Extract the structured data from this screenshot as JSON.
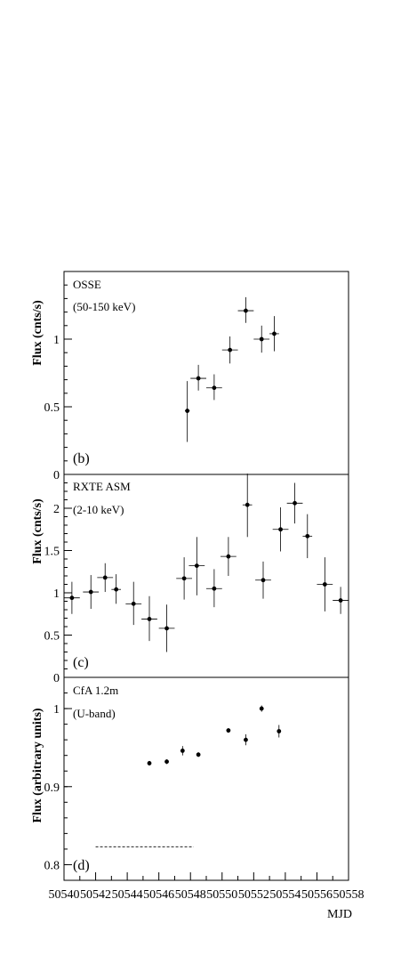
{
  "chart_data": [
    {
      "type": "scatter",
      "panel": "b",
      "instrument": "OSSE",
      "band": "(50-150 keV)",
      "ylabel": "Flux (cnts/s)",
      "ylim": [
        0,
        1.5
      ],
      "yticks": [
        0,
        0.5,
        1
      ],
      "ytick_labels": [
        "0",
        "0.5",
        "1"
      ],
      "points": [
        {
          "x": 50547.8,
          "y": 0.47,
          "xerr": 0.15,
          "yerr_lo": 0.23,
          "yerr_hi": 0.22
        },
        {
          "x": 50548.5,
          "y": 0.71,
          "xerr": 0.5,
          "yerr_lo": 0.09,
          "yerr_hi": 0.1
        },
        {
          "x": 50549.5,
          "y": 0.64,
          "xerr": 0.5,
          "yerr_lo": 0.09,
          "yerr_hi": 0.1
        },
        {
          "x": 50550.5,
          "y": 0.92,
          "xerr": 0.5,
          "yerr_lo": 0.1,
          "yerr_hi": 0.1
        },
        {
          "x": 50551.5,
          "y": 1.21,
          "xerr": 0.5,
          "yerr_lo": 0.09,
          "yerr_hi": 0.1
        },
        {
          "x": 50552.5,
          "y": 1.0,
          "xerr": 0.5,
          "yerr_lo": 0.1,
          "yerr_hi": 0.1
        },
        {
          "x": 50553.3,
          "y": 1.04,
          "xerr": 0.3,
          "yerr_lo": 0.13,
          "yerr_hi": 0.13
        }
      ]
    },
    {
      "type": "scatter",
      "panel": "c",
      "instrument": "RXTE ASM",
      "band": "(2-10 keV)",
      "ylabel": "Flux (cnts/s)",
      "ylim": [
        0,
        2.4
      ],
      "yticks": [
        0,
        0.5,
        1,
        1.5,
        2
      ],
      "ytick_labels": [
        "0",
        "0.5",
        "1",
        "1.5",
        "2"
      ],
      "points": [
        {
          "x": 50540.5,
          "y": 0.94,
          "xerr": 0.5,
          "yerr_lo": 0.19,
          "yerr_hi": 0.19
        },
        {
          "x": 50541.7,
          "y": 1.01,
          "xerr": 0.5,
          "yerr_lo": 0.2,
          "yerr_hi": 0.2
        },
        {
          "x": 50542.6,
          "y": 1.18,
          "xerr": 0.5,
          "yerr_lo": 0.17,
          "yerr_hi": 0.17
        },
        {
          "x": 50543.3,
          "y": 1.04,
          "xerr": 0.3,
          "yerr_lo": 0.17,
          "yerr_hi": 0.18
        },
        {
          "x": 50544.4,
          "y": 0.87,
          "xerr": 0.5,
          "yerr_lo": 0.25,
          "yerr_hi": 0.26
        },
        {
          "x": 50545.4,
          "y": 0.69,
          "xerr": 0.5,
          "yerr_lo": 0.26,
          "yerr_hi": 0.27
        },
        {
          "x": 50546.5,
          "y": 0.58,
          "xerr": 0.5,
          "yerr_lo": 0.28,
          "yerr_hi": 0.28
        },
        {
          "x": 50547.6,
          "y": 1.17,
          "xerr": 0.5,
          "yerr_lo": 0.25,
          "yerr_hi": 0.25
        },
        {
          "x": 50548.4,
          "y": 1.32,
          "xerr": 0.5,
          "yerr_lo": 0.35,
          "yerr_hi": 0.34
        },
        {
          "x": 50549.5,
          "y": 1.05,
          "xerr": 0.5,
          "yerr_lo": 0.22,
          "yerr_hi": 0.23
        },
        {
          "x": 50550.4,
          "y": 1.43,
          "xerr": 0.5,
          "yerr_lo": 0.23,
          "yerr_hi": 0.23
        },
        {
          "x": 50551.6,
          "y": 2.04,
          "xerr": 0.3,
          "yerr_lo": 0.38,
          "yerr_hi": 0.37
        },
        {
          "x": 50552.6,
          "y": 1.15,
          "xerr": 0.5,
          "yerr_lo": 0.22,
          "yerr_hi": 0.22
        },
        {
          "x": 50553.7,
          "y": 1.75,
          "xerr": 0.5,
          "yerr_lo": 0.26,
          "yerr_hi": 0.26
        },
        {
          "x": 50554.6,
          "y": 2.06,
          "xerr": 0.5,
          "yerr_lo": 0.24,
          "yerr_hi": 0.24
        },
        {
          "x": 50555.4,
          "y": 1.67,
          "xerr": 0.3,
          "yerr_lo": 0.26,
          "yerr_hi": 0.26
        },
        {
          "x": 50556.5,
          "y": 1.1,
          "xerr": 0.5,
          "yerr_lo": 0.32,
          "yerr_hi": 0.32
        },
        {
          "x": 50557.5,
          "y": 0.91,
          "xerr": 0.5,
          "yerr_lo": 0.16,
          "yerr_hi": 0.16
        }
      ]
    },
    {
      "type": "scatter",
      "panel": "d",
      "instrument": "CfA 1.2m",
      "band": "(U-band)",
      "ylabel": "Flux (arbitrary units)",
      "ylim": [
        0.78,
        1.04
      ],
      "yticks": [
        0.8,
        0.9,
        1
      ],
      "ytick_labels": [
        "0.8",
        "0.9",
        "1"
      ],
      "xlabel": "MJD",
      "xlim": [
        50540,
        50558
      ],
      "xticks": [
        50540,
        50542,
        50544,
        50546,
        50548,
        50550,
        50552,
        50554,
        50556,
        50558
      ],
      "reference_line": {
        "x0": 50542.0,
        "x1": 50548.2,
        "y": 0.823,
        "style": "dashed"
      },
      "points": [
        {
          "x": 50545.4,
          "y": 0.93,
          "yerr": 0.003
        },
        {
          "x": 50546.5,
          "y": 0.932,
          "yerr": 0.003
        },
        {
          "x": 50547.5,
          "y": 0.946,
          "yerr": 0.006
        },
        {
          "x": 50548.5,
          "y": 0.941,
          "yerr": 0.003
        },
        {
          "x": 50550.4,
          "y": 0.972,
          "yerr": 0.003
        },
        {
          "x": 50551.5,
          "y": 0.96,
          "yerr": 0.007
        },
        {
          "x": 50552.5,
          "y": 1.0,
          "yerr": 0.004
        },
        {
          "x": 50553.6,
          "y": 0.971,
          "yerr": 0.008
        }
      ]
    }
  ]
}
